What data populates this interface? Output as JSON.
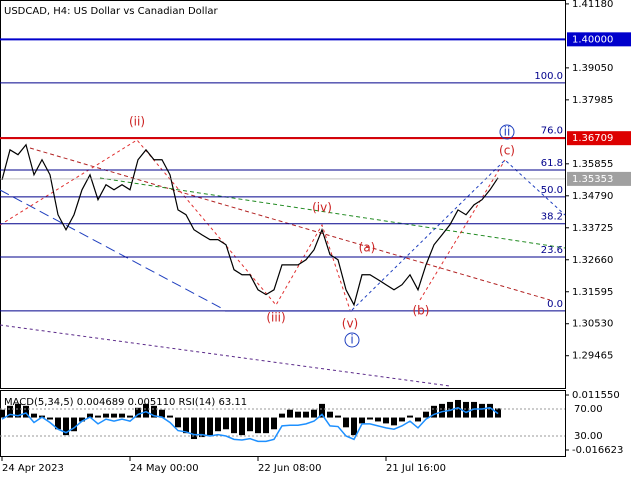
{
  "chart_data": [
    {
      "type": "line",
      "title": "USDCAD, H4:  US Dollar vs Canadian Dollar",
      "color": "#000000",
      "categories": [
        "24 Apr 2023",
        null,
        null,
        null,
        null,
        null,
        null,
        null,
        null,
        null,
        null,
        null,
        null,
        null,
        null,
        null,
        "24 May 00:00",
        null,
        null,
        null,
        null,
        null,
        null,
        null,
        null,
        null,
        null,
        null,
        null,
        null,
        null,
        null,
        "22 Jun 08:00",
        null,
        null,
        null,
        null,
        null,
        null,
        null,
        null,
        null,
        null,
        null,
        null,
        null,
        null,
        null,
        "21 Jul 16:00",
        null,
        null,
        null,
        null,
        null,
        null,
        null,
        null,
        null,
        null,
        null,
        null,
        null,
        null
      ],
      "values": [
        1.3532,
        1.3632,
        1.3616,
        1.3649,
        1.3549,
        1.3599,
        1.3549,
        1.3416,
        1.3366,
        1.3416,
        1.3499,
        1.3549,
        1.3466,
        1.3516,
        1.3499,
        1.3516,
        1.3499,
        1.3599,
        1.3632,
        1.3599,
        1.3599,
        1.3549,
        1.3432,
        1.3416,
        1.3366,
        1.3349,
        1.3333,
        1.3333,
        1.3316,
        1.3233,
        1.3216,
        1.3216,
        1.3166,
        1.315,
        1.3166,
        1.3249,
        1.3249,
        1.3249,
        1.3266,
        1.3299,
        1.3366,
        1.3283,
        1.3266,
        1.3166,
        1.3116,
        1.3216,
        1.3216,
        1.32,
        1.3183,
        1.3166,
        1.3183,
        1.3216,
        1.3166,
        1.3249,
        1.3316,
        1.3349,
        1.3383,
        1.3432,
        1.3416,
        1.3449,
        1.3466,
        1.3499,
        1.3539
      ],
      "ylim": [
        1.2839,
        1.4131
      ],
      "yticks": [
        {
          "value": 1.4118,
          "label": "1.41180"
        },
        {
          "value": 1.3905,
          "label": "1.39050"
        },
        {
          "value": 1.37985,
          "label": "1.37985"
        },
        {
          "value": 1.35855,
          "label": "1.35855"
        },
        {
          "value": 1.3479,
          "label": "1.34790"
        },
        {
          "value": 1.33725,
          "label": "1.33725"
        },
        {
          "value": 1.3266,
          "label": "1.32660"
        },
        {
          "value": 1.31595,
          "label": "1.31595"
        },
        {
          "value": 1.3053,
          "label": "1.30530"
        },
        {
          "value": 1.29465,
          "label": "1.29465"
        }
      ],
      "levels": [
        {
          "value": 1.4,
          "label": "1.40000",
          "color": "#0000cc"
        },
        {
          "value": 1.36709,
          "label": "1.36709",
          "color": "#dd0000"
        }
      ],
      "last_price": {
        "value": 1.35353,
        "label": "1.35353",
        "color": "#a0a0a0"
      },
      "fibonacci": {
        "start": 1.3096,
        "end": 1.3855,
        "color": "#00008b",
        "levels": [
          {
            "value": 100,
            "label": "100.0"
          },
          {
            "value": 76,
            "label": "76.0"
          },
          {
            "value": 61.8,
            "label": "61.8"
          },
          {
            "value": 50,
            "label": "50.0"
          },
          {
            "value": 38.2,
            "label": "38.2"
          },
          {
            "value": 23.6,
            "label": "23.6"
          },
          {
            "value": 0,
            "label": "0.0"
          }
        ]
      },
      "annotations": [
        {
          "text": "(ii)",
          "color": "#cc2222"
        },
        {
          "text": "(iii)",
          "color": "#cc2222"
        },
        {
          "text": "(iv)",
          "color": "#cc2222"
        },
        {
          "text": "(v)",
          "color": "#cc2222"
        },
        {
          "text": "i",
          "color": "#1f3fbf"
        },
        {
          "text": "ii",
          "color": "#1f3fbf"
        },
        {
          "text": "(a)",
          "color": "#cc2222"
        },
        {
          "text": "(b)",
          "color": "#cc2222"
        },
        {
          "text": "(c)",
          "color": "#cc2222"
        }
      ]
    },
    {
      "type": "bar",
      "title": "MACD(5,34,5) 0.004689 0.005110 RSI(14) 63.11",
      "color": "#000000",
      "values": [
        0.004,
        0.006,
        0.007,
        0.006,
        0.002,
        0.001,
        -0.001,
        -0.006,
        -0.009,
        -0.007,
        -0.002,
        0.002,
        0.001,
        0.002,
        0.002,
        0.002,
        0.001,
        0.005,
        0.007,
        0.006,
        0.004,
        0.001,
        -0.005,
        -0.008,
        -0.011,
        -0.01,
        -0.009,
        -0.007,
        -0.006,
        -0.008,
        -0.009,
        -0.007,
        -0.008,
        -0.008,
        -0.006,
        0.002,
        0.004,
        0.003,
        0.003,
        0.004,
        0.007,
        0.003,
        0.001,
        -0.005,
        -0.009,
        -0.003,
        -0.001,
        -0.002,
        -0.003,
        -0.004,
        -0.002,
        0.001,
        -0.002,
        0.003,
        0.006,
        0.007,
        0.008,
        0.009,
        0.008,
        0.008,
        0.007,
        0.007,
        0.0047
      ],
      "ylim": [
        -0.01918,
        0.01513
      ],
      "yticks": [
        {
          "value": 0.01155,
          "label": "0.011550"
        },
        {
          "value": -0.016623,
          "label": "-0.016623"
        }
      ],
      "y2lim": [
        1.85,
        101.1
      ],
      "y2ticks": [
        {
          "value": 70,
          "label": "70.00"
        },
        {
          "value": 30,
          "label": "30.00"
        }
      ],
      "series": [
        {
          "axis": "y2",
          "color": "#1e90ff",
          "values": [
            55,
            62,
            60,
            64,
            50,
            58,
            50,
            40,
            35,
            42,
            52,
            58,
            48,
            55,
            52,
            55,
            52,
            62,
            66,
            60,
            58,
            50,
            38,
            36,
            32,
            32,
            30,
            32,
            30,
            25,
            24,
            26,
            22,
            22,
            25,
            45,
            46,
            46,
            48,
            52,
            62,
            45,
            44,
            30,
            25,
            48,
            48,
            45,
            42,
            40,
            45,
            52,
            42,
            55,
            62,
            66,
            68,
            72,
            65,
            70,
            70,
            72,
            63.11
          ]
        }
      ]
    }
  ]
}
